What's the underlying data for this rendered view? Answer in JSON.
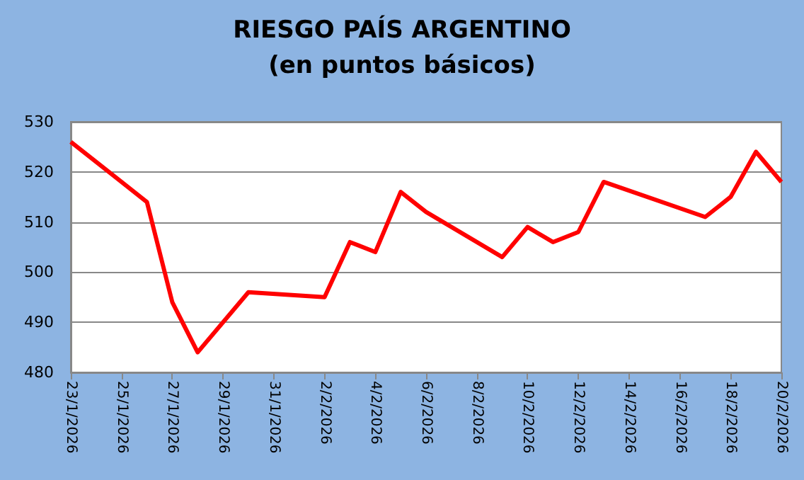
{
  "chart_data": {
    "type": "line",
    "title": "RIESGO PAÍS ARGENTINO",
    "subtitle": "(en puntos básicos)",
    "x": [
      "2026-01-23",
      "2026-01-26",
      "2026-01-27",
      "2026-01-28",
      "2026-01-30",
      "2026-02-02",
      "2026-02-03",
      "2026-02-04",
      "2026-02-05",
      "2026-02-06",
      "2026-02-09",
      "2026-02-10",
      "2026-02-11",
      "2026-02-12",
      "2026-02-13",
      "2026-02-17",
      "2026-02-18",
      "2026-02-19",
      "2026-02-20"
    ],
    "series": [
      {
        "color": "#ff0000",
        "values": [
          526,
          514,
          494,
          484,
          496,
          495,
          506,
          504,
          516,
          512,
          503,
          509,
          506,
          508,
          518,
          511,
          515,
          524,
          518
        ]
      }
    ],
    "xlim": [
      "2026-01-23",
      "2026-02-20"
    ],
    "xticks": [
      {
        "value": "2026-01-23",
        "label": "23/1/2026"
      },
      {
        "value": "2026-01-25",
        "label": "25/1/2026"
      },
      {
        "value": "2026-01-27",
        "label": "27/1/2026"
      },
      {
        "value": "2026-01-29",
        "label": "29/1/2026"
      },
      {
        "value": "2026-01-31",
        "label": "31/1/2026"
      },
      {
        "value": "2026-02-02",
        "label": "2/2/2026"
      },
      {
        "value": "2026-02-04",
        "label": "4/2/2026"
      },
      {
        "value": "2026-02-06",
        "label": "6/2/2026"
      },
      {
        "value": "2026-02-08",
        "label": "8/2/2026"
      },
      {
        "value": "2026-02-10",
        "label": "10/2/2026"
      },
      {
        "value": "2026-02-12",
        "label": "12/2/2026"
      },
      {
        "value": "2026-02-14",
        "label": "14/2/2026"
      },
      {
        "value": "2026-02-16",
        "label": "16/2/2026"
      },
      {
        "value": "2026-02-18",
        "label": "18/2/2026"
      },
      {
        "value": "2026-02-20",
        "label": "20/2/2026"
      }
    ],
    "ylim": [
      480,
      530
    ],
    "yticks": [
      480,
      490,
      500,
      510,
      520,
      530
    ],
    "grid": "y",
    "marker": "none",
    "line_style": "solid"
  }
}
